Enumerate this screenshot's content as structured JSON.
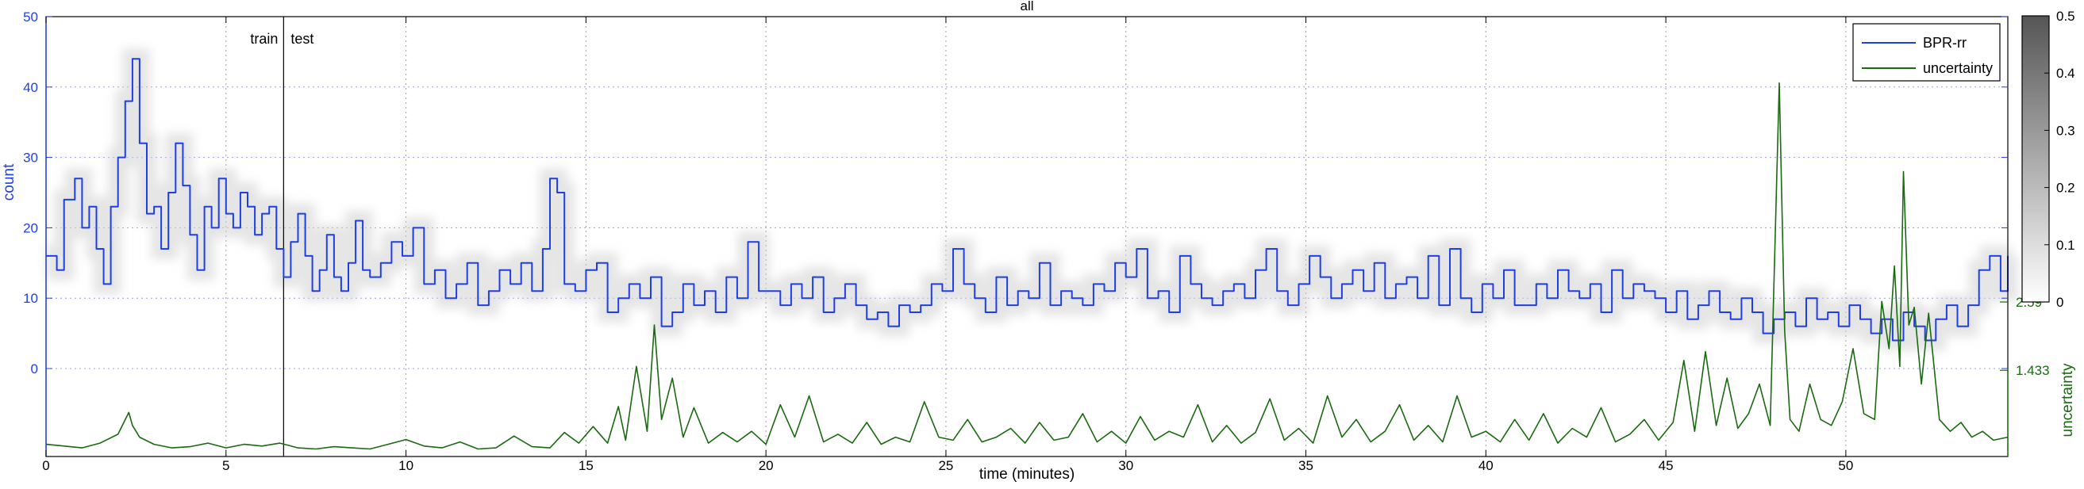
{
  "chart_data": {
    "type": "line",
    "title": "all",
    "xlabel": "time (minutes)",
    "ylabel_left": "count",
    "ylabel_right": "uncertainty",
    "xlim": [
      0,
      54.5
    ],
    "x_ticks": [
      0,
      5,
      10,
      15,
      20,
      25,
      30,
      35,
      40,
      45,
      50
    ],
    "y_ticks_left": [
      0,
      10,
      20,
      30,
      40,
      50
    ],
    "y_ticks_right": [
      1.433,
      2.59
    ],
    "grid": true,
    "legend_placement": "top-right",
    "legend": [
      "BPR-rr",
      "uncertainty"
    ],
    "annotations": [
      {
        "text": "train",
        "x": 6.6,
        "anchor": "end"
      },
      {
        "text": "test",
        "x": 6.6,
        "anchor": "start"
      }
    ],
    "split_line_x": 6.6,
    "colorbar": {
      "min": 0,
      "max": 0.5,
      "ticks": [
        0,
        0.1,
        0.2,
        0.3,
        0.4,
        0.5
      ]
    },
    "colors": {
      "count": "#1f3fe6",
      "uncertainty": "#1a6a10",
      "axis": "#000000",
      "grid": "#9a9aff"
    },
    "series": [
      {
        "name": "BPR-rr",
        "axis": "count",
        "x": [
          0,
          0.3,
          0.5,
          0.8,
          1.0,
          1.2,
          1.4,
          1.6,
          1.8,
          2.0,
          2.2,
          2.4,
          2.6,
          2.8,
          3.0,
          3.2,
          3.4,
          3.6,
          3.8,
          4.0,
          4.2,
          4.4,
          4.6,
          4.8,
          5.0,
          5.2,
          5.4,
          5.6,
          5.8,
          6.0,
          6.2,
          6.4,
          6.6,
          6.8,
          7.0,
          7.2,
          7.4,
          7.6,
          7.8,
          8.0,
          8.2,
          8.4,
          8.6,
          8.8,
          9.0,
          9.3,
          9.6,
          9.9,
          10.2,
          10.5,
          10.8,
          11.1,
          11.4,
          11.7,
          12.0,
          12.3,
          12.6,
          12.9,
          13.2,
          13.5,
          13.8,
          14.0,
          14.2,
          14.4,
          14.7,
          15.0,
          15.3,
          15.6,
          15.9,
          16.2,
          16.5,
          16.8,
          17.1,
          17.4,
          17.7,
          18.0,
          18.3,
          18.6,
          18.9,
          19.2,
          19.5,
          19.8,
          20.1,
          20.4,
          20.7,
          21.0,
          21.3,
          21.6,
          21.9,
          22.2,
          22.5,
          22.8,
          23.1,
          23.4,
          23.7,
          24.0,
          24.3,
          24.6,
          24.9,
          25.2,
          25.5,
          25.8,
          26.1,
          26.4,
          26.7,
          27.0,
          27.3,
          27.6,
          27.9,
          28.2,
          28.5,
          28.8,
          29.1,
          29.4,
          29.7,
          30.0,
          30.3,
          30.6,
          30.9,
          31.2,
          31.5,
          31.8,
          32.1,
          32.4,
          32.7,
          33.0,
          33.3,
          33.6,
          33.9,
          34.2,
          34.5,
          34.8,
          35.1,
          35.4,
          35.7,
          36.0,
          36.3,
          36.6,
          36.9,
          37.2,
          37.5,
          37.8,
          38.1,
          38.4,
          38.7,
          39.0,
          39.3,
          39.6,
          39.9,
          40.2,
          40.5,
          40.8,
          41.1,
          41.4,
          41.7,
          42.0,
          42.3,
          42.6,
          42.9,
          43.2,
          43.5,
          43.8,
          44.1,
          44.4,
          44.7,
          45.0,
          45.3,
          45.6,
          45.9,
          46.2,
          46.5,
          46.8,
          47.1,
          47.4,
          47.7,
          48.0,
          48.3,
          48.6,
          48.9,
          49.2,
          49.5,
          49.8,
          50.1,
          50.4,
          50.7,
          51.0,
          51.3,
          51.6,
          51.9,
          52.2,
          52.5,
          52.8,
          53.1,
          53.4,
          53.7,
          54.0,
          54.3,
          54.5
        ],
        "y": [
          16,
          14,
          24,
          27,
          20,
          23,
          17,
          12,
          23,
          30,
          38,
          44,
          32,
          22,
          23,
          17,
          25,
          32,
          26,
          19,
          14,
          23,
          20,
          27,
          22,
          20,
          25,
          23,
          19,
          22,
          23,
          17,
          13,
          18,
          22,
          16,
          11,
          14,
          19,
          13,
          11,
          15,
          21,
          14,
          13,
          15,
          18,
          16,
          20,
          12,
          14,
          10,
          12,
          15,
          9,
          11,
          14,
          12,
          15,
          11,
          17,
          27,
          25,
          12,
          11,
          14,
          15,
          8,
          10,
          12,
          10,
          13,
          6,
          8,
          12,
          9,
          11,
          8,
          13,
          10,
          18,
          11,
          11,
          9,
          12,
          10,
          13,
          8,
          10,
          12,
          9,
          7,
          8,
          6,
          9,
          8,
          9,
          12,
          11,
          17,
          12,
          10,
          8,
          13,
          9,
          11,
          10,
          15,
          9,
          11,
          10,
          9,
          12,
          11,
          15,
          13,
          17,
          10,
          11,
          8,
          16,
          12,
          10,
          9,
          11,
          12,
          10,
          14,
          17,
          11,
          9,
          12,
          16,
          13,
          10,
          12,
          14,
          11,
          15,
          10,
          12,
          13,
          10,
          16,
          9,
          17,
          10,
          8,
          12,
          10,
          14,
          9,
          9,
          12,
          10,
          14,
          11,
          10,
          12,
          8,
          14,
          10,
          12,
          11,
          10,
          8,
          11,
          7,
          9,
          11,
          8,
          7,
          10,
          8,
          5,
          7,
          8,
          6,
          10,
          7,
          8,
          6,
          9,
          7,
          5,
          7,
          4,
          8,
          6,
          4,
          7,
          9,
          6,
          9,
          14,
          16,
          11,
          16
        ]
      },
      {
        "name": "uncertainty",
        "axis": "uncertainty",
        "x": [
          0,
          0.5,
          1.0,
          1.5,
          2.0,
          2.3,
          2.4,
          2.6,
          3.0,
          3.5,
          4.0,
          4.5,
          5.0,
          5.5,
          6.0,
          6.5,
          7.0,
          7.5,
          8.0,
          8.5,
          9.0,
          9.5,
          10.0,
          10.5,
          11.0,
          11.5,
          12.0,
          12.5,
          13.0,
          13.5,
          14.0,
          14.4,
          14.8,
          15.2,
          15.6,
          15.9,
          16.1,
          16.4,
          16.7,
          16.9,
          17.1,
          17.4,
          17.7,
          18.0,
          18.4,
          18.8,
          19.2,
          19.6,
          20.0,
          20.4,
          20.8,
          21.2,
          21.6,
          22.0,
          22.4,
          22.8,
          23.2,
          23.6,
          24.0,
          24.4,
          24.8,
          25.2,
          25.6,
          26.0,
          26.4,
          26.8,
          27.2,
          27.6,
          28.0,
          28.4,
          28.8,
          29.2,
          29.6,
          30.0,
          30.4,
          30.8,
          31.2,
          31.6,
          32.0,
          32.4,
          32.8,
          33.2,
          33.6,
          34.0,
          34.4,
          34.8,
          35.2,
          35.6,
          36.0,
          36.4,
          36.8,
          37.2,
          37.6,
          38.0,
          38.4,
          38.8,
          39.2,
          39.6,
          40.0,
          40.4,
          40.8,
          41.2,
          41.6,
          42.0,
          42.4,
          42.8,
          43.2,
          43.6,
          44.0,
          44.4,
          44.8,
          45.2,
          45.5,
          45.8,
          46.1,
          46.4,
          46.7,
          47.0,
          47.3,
          47.6,
          47.9,
          48.15,
          48.3,
          48.45,
          48.7,
          49.0,
          49.3,
          49.6,
          49.9,
          50.2,
          50.5,
          50.8,
          51.0,
          51.2,
          51.35,
          51.5,
          51.6,
          51.75,
          51.9,
          52.1,
          52.3,
          52.6,
          52.9,
          53.2,
          53.5,
          53.8,
          54.1,
          54.5
        ],
        "y": [
          0.18,
          0.15,
          0.12,
          0.2,
          0.35,
          0.72,
          0.5,
          0.3,
          0.18,
          0.12,
          0.14,
          0.2,
          0.12,
          0.18,
          0.15,
          0.2,
          0.12,
          0.1,
          0.14,
          0.12,
          0.1,
          0.18,
          0.26,
          0.15,
          0.12,
          0.22,
          0.1,
          0.12,
          0.32,
          0.14,
          0.12,
          0.38,
          0.2,
          0.48,
          0.2,
          0.82,
          0.25,
          1.5,
          0.4,
          2.2,
          0.6,
          1.3,
          0.3,
          0.8,
          0.2,
          0.38,
          0.22,
          0.4,
          0.18,
          0.85,
          0.3,
          1.0,
          0.22,
          0.35,
          0.2,
          0.55,
          0.18,
          0.3,
          0.22,
          0.9,
          0.3,
          0.25,
          0.6,
          0.22,
          0.3,
          0.45,
          0.2,
          0.55,
          0.25,
          0.3,
          0.7,
          0.22,
          0.4,
          0.2,
          0.65,
          0.25,
          0.4,
          0.3,
          0.85,
          0.22,
          0.5,
          0.2,
          0.38,
          0.95,
          0.25,
          0.45,
          0.2,
          1.0,
          0.3,
          0.6,
          0.22,
          0.4,
          0.85,
          0.25,
          0.5,
          0.22,
          1.0,
          0.3,
          0.4,
          0.22,
          0.6,
          0.25,
          0.7,
          0.2,
          0.45,
          0.3,
          0.8,
          0.22,
          0.35,
          0.6,
          0.25,
          0.55,
          1.6,
          0.4,
          1.75,
          0.5,
          1.3,
          0.45,
          0.7,
          1.2,
          0.5,
          6.3,
          2.1,
          0.6,
          0.4,
          1.2,
          0.6,
          0.5,
          0.9,
          1.8,
          0.7,
          0.6,
          2.6,
          1.8,
          3.2,
          1.5,
          4.8,
          2.2,
          2.5,
          1.2,
          2.4,
          0.6,
          0.4,
          0.55,
          0.3,
          0.4,
          0.25,
          0.3
        ]
      }
    ]
  }
}
